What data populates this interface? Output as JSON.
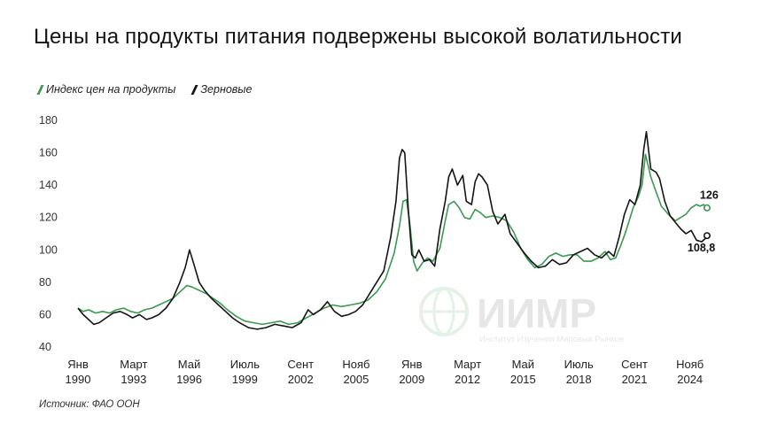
{
  "title": "Цены на продукты питания подвержены высокой волатильности",
  "source": "Источник: ФАО ООН",
  "watermark": {
    "name": "ИИМР",
    "subtitle": "Институт Изучения Мировых Рынков"
  },
  "chart_data": {
    "type": "line",
    "title": "Цены на продукты питания подвержены высокой волатильности",
    "ylim": [
      40,
      180
    ],
    "yticks": [
      "40",
      "60",
      "80",
      "100",
      "120",
      "140",
      "160",
      "180"
    ],
    "xlim": [
      1990.0,
      2025.4
    ],
    "xticks": [
      {
        "line1": "Янв",
        "line2": "1990",
        "x": 1990.0
      },
      {
        "line1": "Март",
        "line2": "1993",
        "x": 1993.17
      },
      {
        "line1": "Май",
        "line2": "1996",
        "x": 1996.33
      },
      {
        "line1": "Июль",
        "line2": "1999",
        "x": 1999.5
      },
      {
        "line1": "Сент",
        "line2": "2002",
        "x": 2002.67
      },
      {
        "line1": "Нояб",
        "line2": "2005",
        "x": 2005.83
      },
      {
        "line1": "Янв",
        "line2": "2009",
        "x": 2009.0
      },
      {
        "line1": "Март",
        "line2": "2012",
        "x": 2012.17
      },
      {
        "line1": "Май",
        "line2": "2015",
        "x": 2015.33
      },
      {
        "line1": "Июль",
        "line2": "2018",
        "x": 2018.5
      },
      {
        "line1": "Сент",
        "line2": "2021",
        "x": 2021.67
      },
      {
        "line1": "Нояб",
        "line2": "2024",
        "x": 2024.83
      }
    ],
    "grid": false,
    "legend_position": "top-left",
    "series": [
      {
        "name": "Индекс цен на продукты",
        "color": "#3a9a4e",
        "end_label": "126",
        "points": [
          [
            1990.0,
            64
          ],
          [
            1990.3,
            62
          ],
          [
            1990.6,
            63
          ],
          [
            1991.0,
            61
          ],
          [
            1991.4,
            62
          ],
          [
            1991.8,
            61
          ],
          [
            1992.2,
            63
          ],
          [
            1992.6,
            64
          ],
          [
            1993.0,
            62
          ],
          [
            1993.4,
            61
          ],
          [
            1993.8,
            63
          ],
          [
            1994.2,
            64
          ],
          [
            1994.6,
            66
          ],
          [
            1995.0,
            68
          ],
          [
            1995.4,
            70
          ],
          [
            1995.8,
            74
          ],
          [
            1996.2,
            78
          ],
          [
            1996.5,
            77
          ],
          [
            1996.9,
            75
          ],
          [
            1997.3,
            73
          ],
          [
            1997.7,
            70
          ],
          [
            1998.1,
            67
          ],
          [
            1998.5,
            63
          ],
          [
            1999.0,
            59
          ],
          [
            1999.5,
            56
          ],
          [
            2000.0,
            55
          ],
          [
            2000.5,
            54
          ],
          [
            2001.0,
            55
          ],
          [
            2001.5,
            56
          ],
          [
            2002.0,
            54
          ],
          [
            2002.5,
            55
          ],
          [
            2003.0,
            58
          ],
          [
            2003.5,
            61
          ],
          [
            2004.0,
            64
          ],
          [
            2004.5,
            66
          ],
          [
            2005.0,
            65
          ],
          [
            2005.5,
            66
          ],
          [
            2006.0,
            67
          ],
          [
            2006.5,
            69
          ],
          [
            2007.0,
            74
          ],
          [
            2007.5,
            82
          ],
          [
            2008.0,
            98
          ],
          [
            2008.3,
            115
          ],
          [
            2008.5,
            130
          ],
          [
            2008.7,
            131
          ],
          [
            2008.9,
            115
          ],
          [
            2009.1,
            93
          ],
          [
            2009.3,
            87
          ],
          [
            2009.6,
            92
          ],
          [
            2009.9,
            95
          ],
          [
            2010.2,
            93
          ],
          [
            2010.6,
            101
          ],
          [
            2010.9,
            118
          ],
          [
            2011.1,
            128
          ],
          [
            2011.4,
            130
          ],
          [
            2011.7,
            126
          ],
          [
            2012.0,
            120
          ],
          [
            2012.3,
            119
          ],
          [
            2012.6,
            125
          ],
          [
            2012.9,
            123
          ],
          [
            2013.2,
            120
          ],
          [
            2013.6,
            121
          ],
          [
            2014.0,
            120
          ],
          [
            2014.4,
            118
          ],
          [
            2014.8,
            111
          ],
          [
            2015.2,
            101
          ],
          [
            2015.6,
            94
          ],
          [
            2016.0,
            89
          ],
          [
            2016.4,
            91
          ],
          [
            2016.8,
            96
          ],
          [
            2017.2,
            98
          ],
          [
            2017.6,
            96
          ],
          [
            2018.0,
            97
          ],
          [
            2018.4,
            97
          ],
          [
            2018.8,
            93
          ],
          [
            2019.2,
            93
          ],
          [
            2019.6,
            95
          ],
          [
            2020.0,
            99
          ],
          [
            2020.3,
            94
          ],
          [
            2020.6,
            95
          ],
          [
            2020.9,
            103
          ],
          [
            2021.2,
            112
          ],
          [
            2021.6,
            126
          ],
          [
            2021.9,
            133
          ],
          [
            2022.1,
            140
          ],
          [
            2022.3,
            159
          ],
          [
            2022.6,
            145
          ],
          [
            2022.9,
            136
          ],
          [
            2023.2,
            127
          ],
          [
            2023.6,
            122
          ],
          [
            2024.0,
            118
          ],
          [
            2024.3,
            120
          ],
          [
            2024.6,
            122
          ],
          [
            2024.9,
            126
          ],
          [
            2025.2,
            128
          ],
          [
            2025.4,
            127
          ],
          [
            2025.6,
            128
          ],
          [
            2025.8,
            126
          ]
        ]
      },
      {
        "name": "Зерновые",
        "color": "#141414",
        "end_label": "108,8",
        "points": [
          [
            1990.0,
            64
          ],
          [
            1990.3,
            60
          ],
          [
            1990.6,
            57
          ],
          [
            1990.9,
            54
          ],
          [
            1991.2,
            55
          ],
          [
            1991.6,
            58
          ],
          [
            1992.0,
            61
          ],
          [
            1992.4,
            62
          ],
          [
            1992.8,
            60
          ],
          [
            1993.1,
            58
          ],
          [
            1993.5,
            60
          ],
          [
            1993.9,
            57
          ],
          [
            1994.2,
            58
          ],
          [
            1994.6,
            60
          ],
          [
            1995.0,
            64
          ],
          [
            1995.4,
            70
          ],
          [
            1995.8,
            80
          ],
          [
            1996.1,
            89
          ],
          [
            1996.35,
            100
          ],
          [
            1996.6,
            91
          ],
          [
            1996.9,
            80
          ],
          [
            1997.2,
            75
          ],
          [
            1997.6,
            70
          ],
          [
            1998.0,
            66
          ],
          [
            1998.4,
            62
          ],
          [
            1998.8,
            58
          ],
          [
            1999.2,
            55
          ],
          [
            1999.7,
            52
          ],
          [
            2000.2,
            51
          ],
          [
            2000.7,
            52
          ],
          [
            2001.2,
            54
          ],
          [
            2001.7,
            53
          ],
          [
            2002.2,
            52
          ],
          [
            2002.7,
            55
          ],
          [
            2003.1,
            63
          ],
          [
            2003.4,
            60
          ],
          [
            2003.8,
            63
          ],
          [
            2004.2,
            68
          ],
          [
            2004.6,
            62
          ],
          [
            2005.0,
            59
          ],
          [
            2005.4,
            60
          ],
          [
            2005.8,
            62
          ],
          [
            2006.2,
            66
          ],
          [
            2006.6,
            73
          ],
          [
            2007.0,
            80
          ],
          [
            2007.4,
            87
          ],
          [
            2007.8,
            108
          ],
          [
            2008.1,
            130
          ],
          [
            2008.3,
            157
          ],
          [
            2008.45,
            162
          ],
          [
            2008.6,
            160
          ],
          [
            2008.8,
            125
          ],
          [
            2009.0,
            97
          ],
          [
            2009.2,
            95
          ],
          [
            2009.4,
            100
          ],
          [
            2009.7,
            93
          ],
          [
            2010.0,
            94
          ],
          [
            2010.3,
            90
          ],
          [
            2010.6,
            113
          ],
          [
            2010.9,
            130
          ],
          [
            2011.1,
            145
          ],
          [
            2011.3,
            150
          ],
          [
            2011.6,
            140
          ],
          [
            2011.9,
            146
          ],
          [
            2012.1,
            130
          ],
          [
            2012.4,
            128
          ],
          [
            2012.6,
            142
          ],
          [
            2012.8,
            147
          ],
          [
            2013.0,
            145
          ],
          [
            2013.3,
            140
          ],
          [
            2013.6,
            124
          ],
          [
            2013.9,
            116
          ],
          [
            2014.3,
            122
          ],
          [
            2014.6,
            110
          ],
          [
            2015.0,
            104
          ],
          [
            2015.4,
            98
          ],
          [
            2015.8,
            93
          ],
          [
            2016.2,
            89
          ],
          [
            2016.6,
            90
          ],
          [
            2017.0,
            94
          ],
          [
            2017.4,
            91
          ],
          [
            2017.8,
            92
          ],
          [
            2018.2,
            97
          ],
          [
            2018.6,
            99
          ],
          [
            2019.0,
            101
          ],
          [
            2019.4,
            97
          ],
          [
            2019.8,
            95
          ],
          [
            2020.2,
            99
          ],
          [
            2020.5,
            96
          ],
          [
            2020.8,
            108
          ],
          [
            2021.1,
            122
          ],
          [
            2021.4,
            131
          ],
          [
            2021.7,
            128
          ],
          [
            2022.0,
            140
          ],
          [
            2022.2,
            162
          ],
          [
            2022.35,
            173
          ],
          [
            2022.6,
            150
          ],
          [
            2022.9,
            148
          ],
          [
            2023.1,
            144
          ],
          [
            2023.4,
            130
          ],
          [
            2023.7,
            121
          ],
          [
            2024.0,
            117
          ],
          [
            2024.3,
            113
          ],
          [
            2024.6,
            110
          ],
          [
            2024.9,
            112
          ],
          [
            2025.2,
            106
          ],
          [
            2025.5,
            105
          ],
          [
            2025.7,
            107
          ],
          [
            2025.8,
            108.8
          ]
        ]
      }
    ]
  }
}
